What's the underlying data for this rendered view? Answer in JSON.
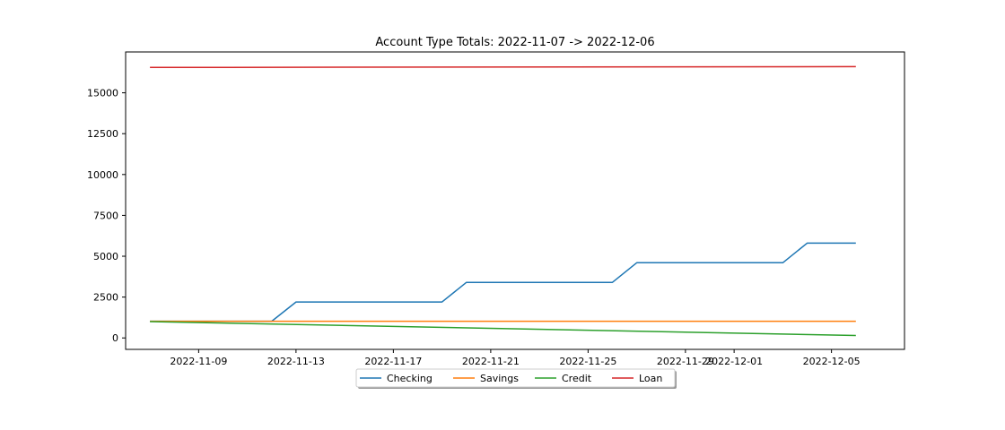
{
  "chart_data": {
    "type": "line",
    "title": "Account Type Totals: 2022-11-07 -> 2022-12-06",
    "xlabel": "",
    "ylabel": "",
    "x_axis_type": "date",
    "xlim": [
      "2022-11-06",
      "2022-12-08"
    ],
    "ylim": [
      -700,
      17500
    ],
    "x_ticks": [
      "2022-11-09",
      "2022-11-13",
      "2022-11-17",
      "2022-11-21",
      "2022-11-25",
      "2022-11-29",
      "2022-12-01",
      "2022-12-05"
    ],
    "y_ticks": [
      0,
      2500,
      5000,
      7500,
      10000,
      12500,
      15000
    ],
    "grid": false,
    "legend_position": "bottom-center",
    "series": [
      {
        "name": "Checking",
        "color": "#1f77b4",
        "points": [
          [
            "2022-11-07",
            1020
          ],
          [
            "2022-11-12",
            1020
          ],
          [
            "2022-11-13",
            2200
          ],
          [
            "2022-11-19",
            2200
          ],
          [
            "2022-11-20",
            3400
          ],
          [
            "2022-11-26",
            3400
          ],
          [
            "2022-11-27",
            4600
          ],
          [
            "2022-12-03",
            4600
          ],
          [
            "2022-12-04",
            5800
          ],
          [
            "2022-12-06",
            5800
          ]
        ]
      },
      {
        "name": "Savings",
        "color": "#ff7f0e",
        "points": [
          [
            "2022-11-07",
            1020
          ],
          [
            "2022-12-06",
            1020
          ]
        ]
      },
      {
        "name": "Credit",
        "color": "#2ca02c",
        "points": [
          [
            "2022-11-07",
            1000
          ],
          [
            "2022-12-06",
            150
          ]
        ]
      },
      {
        "name": "Loan",
        "color": "#d62728",
        "points": [
          [
            "2022-11-07",
            16550
          ],
          [
            "2022-12-06",
            16600
          ]
        ]
      }
    ]
  }
}
